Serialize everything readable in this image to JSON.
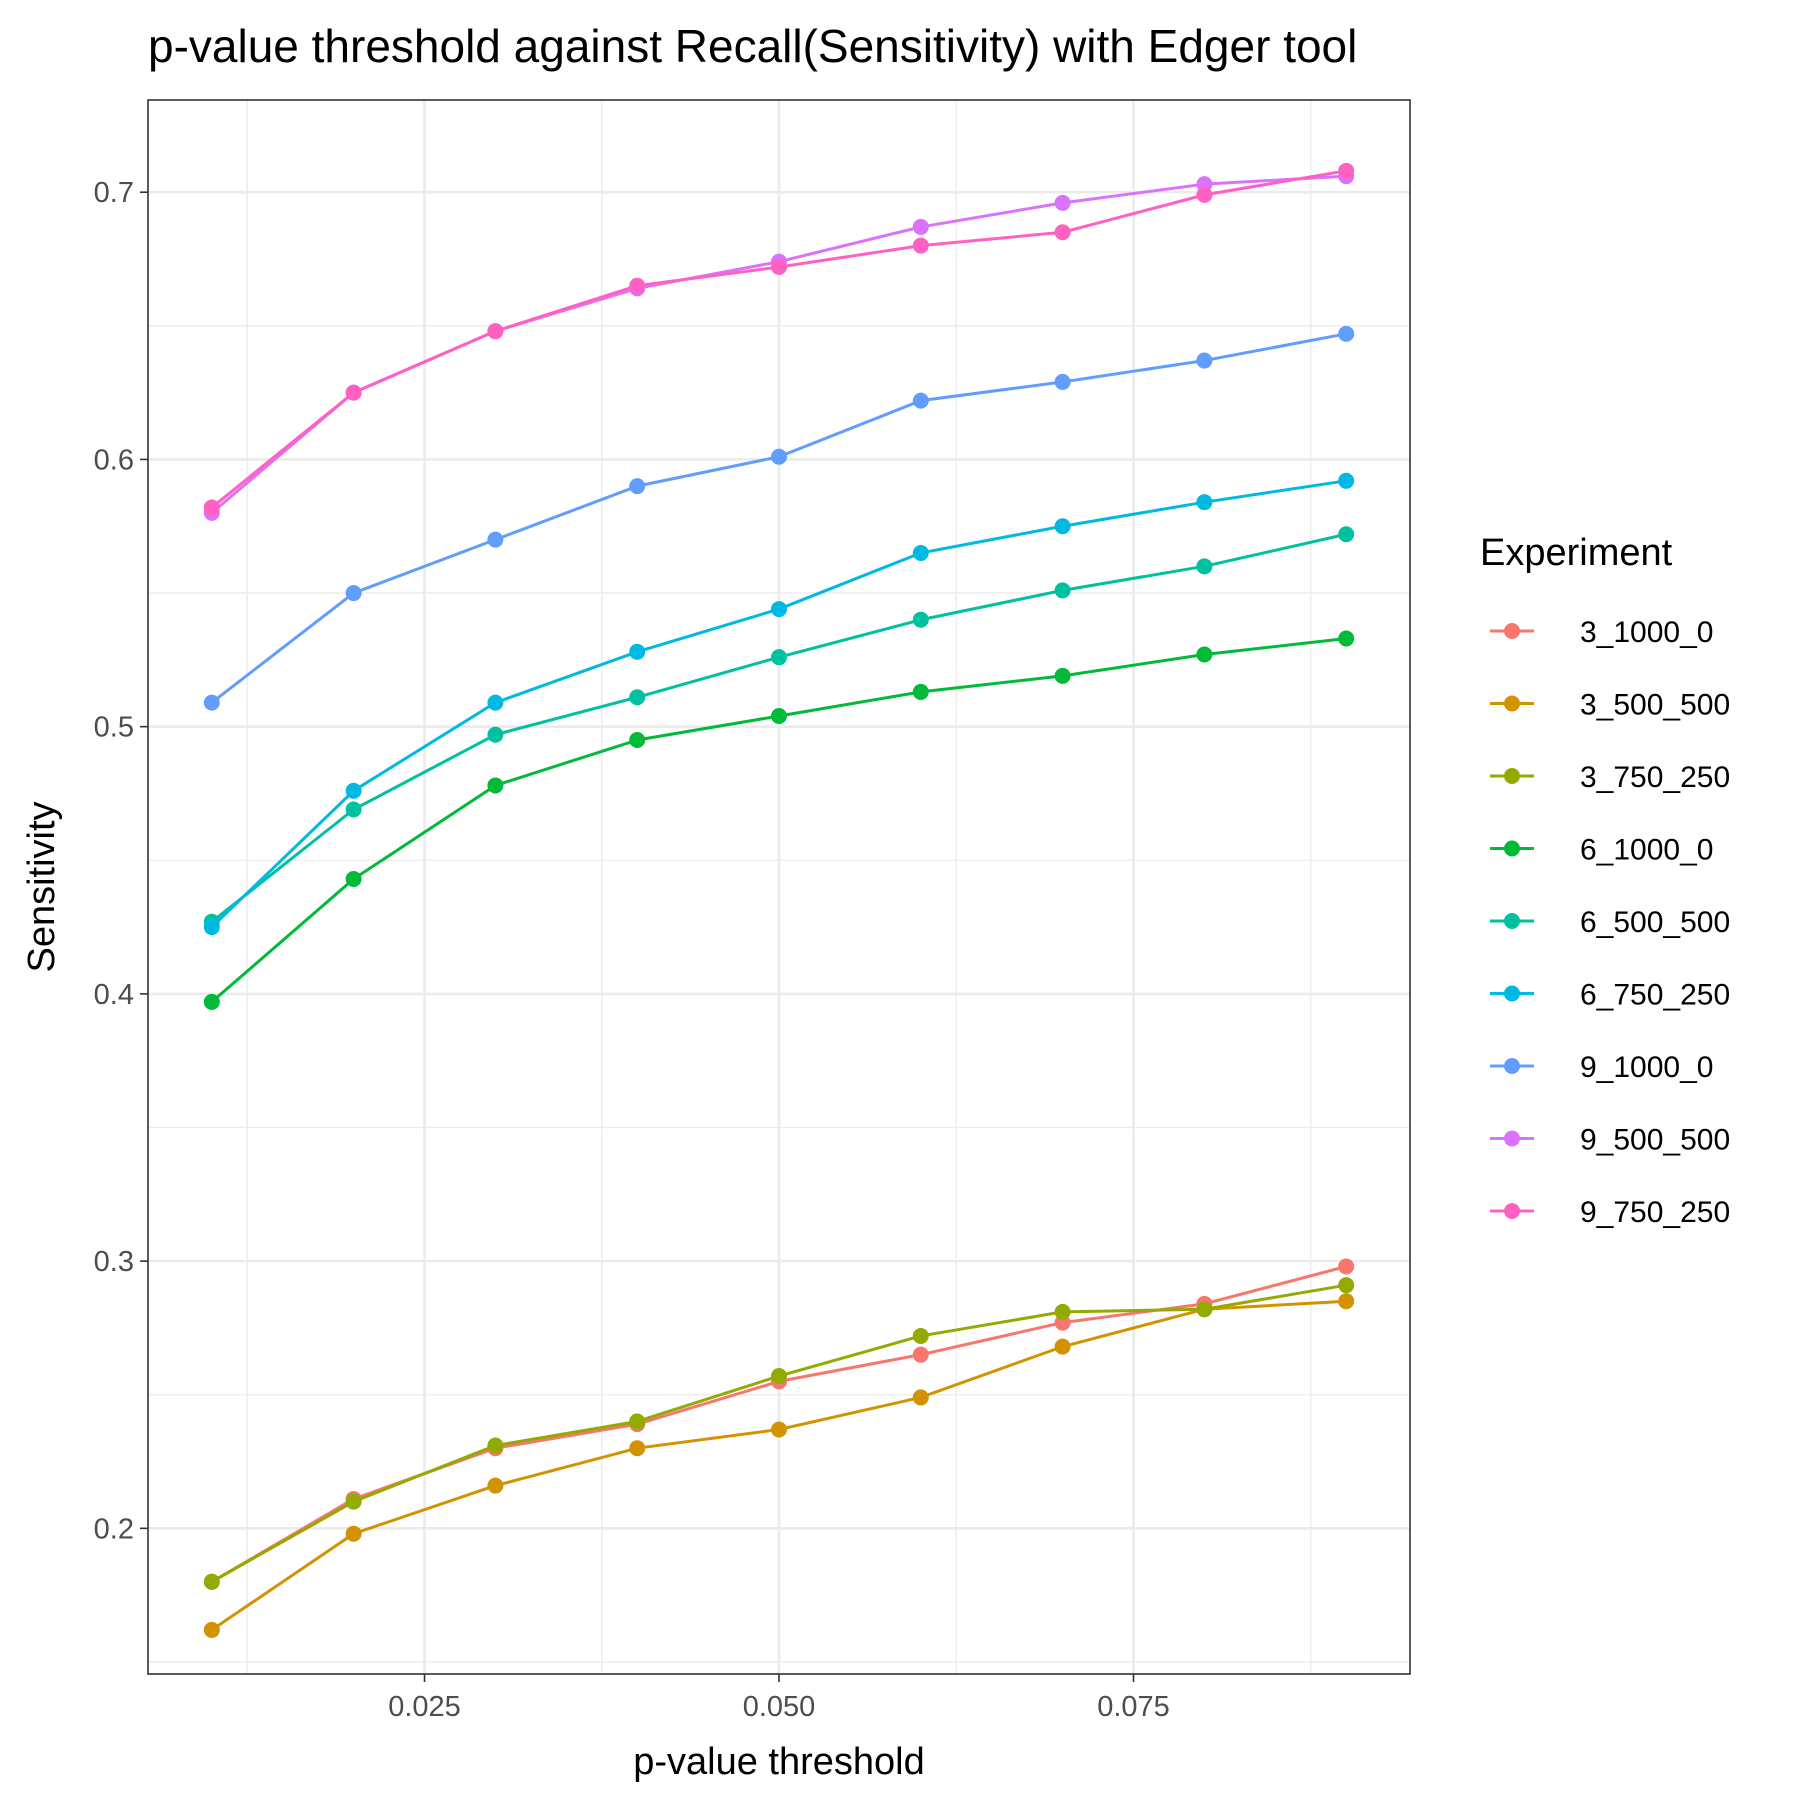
{
  "chart_data": {
    "type": "line",
    "title": "p-value threshold against Recall(Sensitivity) with Edger tool",
    "xlabel": "p-value threshold",
    "ylabel": "Sensitivity",
    "xlim": [
      0.0055,
      0.0945
    ],
    "ylim": [
      0.1455,
      0.7345
    ],
    "x_ticks": [
      0.025,
      0.05,
      0.075
    ],
    "x_tick_labels": [
      "0.025",
      "0.050",
      "0.075"
    ],
    "y_ticks": [
      0.2,
      0.3,
      0.4,
      0.5,
      0.6,
      0.7
    ],
    "y_tick_labels": [
      "0.2",
      "0.3",
      "0.4",
      "0.5",
      "0.6",
      "0.7"
    ],
    "grid": true,
    "legend": {
      "title": "Experiment",
      "placement": "right"
    },
    "x": [
      0.01,
      0.02,
      0.03,
      0.04,
      0.05,
      0.06,
      0.07,
      0.08,
      0.09
    ],
    "series": [
      {
        "name": "3_1000_0",
        "color": "#F8766D",
        "values": [
          0.18,
          0.211,
          0.23,
          0.239,
          0.255,
          0.265,
          0.277,
          0.284,
          0.298
        ]
      },
      {
        "name": "3_500_500",
        "color": "#D39200",
        "values": [
          0.162,
          0.198,
          0.216,
          0.23,
          0.237,
          0.249,
          0.268,
          0.282,
          0.285
        ]
      },
      {
        "name": "3_750_250",
        "color": "#93AA00",
        "values": [
          0.18,
          0.21,
          0.231,
          0.24,
          0.257,
          0.272,
          0.281,
          0.282,
          0.291
        ]
      },
      {
        "name": "6_1000_0",
        "color": "#00BA38",
        "values": [
          0.397,
          0.443,
          0.478,
          0.495,
          0.504,
          0.513,
          0.519,
          0.527,
          0.533
        ]
      },
      {
        "name": "6_500_500",
        "color": "#00C19F",
        "values": [
          0.427,
          0.469,
          0.497,
          0.511,
          0.526,
          0.54,
          0.551,
          0.56,
          0.572
        ]
      },
      {
        "name": "6_750_250",
        "color": "#00B9E3",
        "values": [
          0.425,
          0.476,
          0.509,
          0.528,
          0.544,
          0.565,
          0.575,
          0.584,
          0.592
        ]
      },
      {
        "name": "9_1000_0",
        "color": "#619CFF",
        "values": [
          0.509,
          0.55,
          0.57,
          0.59,
          0.601,
          0.622,
          0.629,
          0.637,
          0.647
        ]
      },
      {
        "name": "9_500_500",
        "color": "#DB72FB",
        "values": [
          0.58,
          0.625,
          0.648,
          0.664,
          0.674,
          0.687,
          0.696,
          0.703,
          0.706
        ]
      },
      {
        "name": "9_750_250",
        "color": "#FF61C3",
        "values": [
          0.582,
          0.625,
          0.648,
          0.665,
          0.672,
          0.68,
          0.685,
          0.699,
          0.708
        ]
      }
    ]
  }
}
